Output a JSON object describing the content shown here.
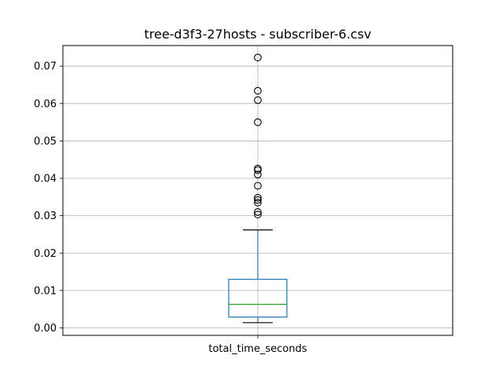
{
  "chart_data": {
    "type": "box",
    "title": "tree-d3f3-27hosts - subscriber-6.csv",
    "categories": [
      "total_time_seconds"
    ],
    "xlabel": "",
    "ylabel": "",
    "ylim": [
      -0.002,
      0.0755
    ],
    "yticks": [
      0.0,
      0.01,
      0.02,
      0.03,
      0.04,
      0.05,
      0.06,
      0.07
    ],
    "ytick_labels": [
      "0.00",
      "0.01",
      "0.02",
      "0.03",
      "0.04",
      "0.05",
      "0.06",
      "0.07"
    ],
    "grid": true,
    "box": {
      "whisker_low": 0.0014,
      "q1": 0.0029,
      "median": 0.0063,
      "q3": 0.013,
      "whisker_high": 0.0262
    },
    "outliers": [
      0.0723,
      0.0634,
      0.0609,
      0.055,
      0.0426,
      0.0422,
      0.041,
      0.038,
      0.0348,
      0.0342,
      0.0335,
      0.031,
      0.0303
    ],
    "colors": {
      "box": "#1f77b4",
      "median": "#2ca02c",
      "whisker": "#1f77b4",
      "cap": "#000000",
      "grid": "#b0b0b0",
      "outlier_edge": "#000000"
    }
  }
}
